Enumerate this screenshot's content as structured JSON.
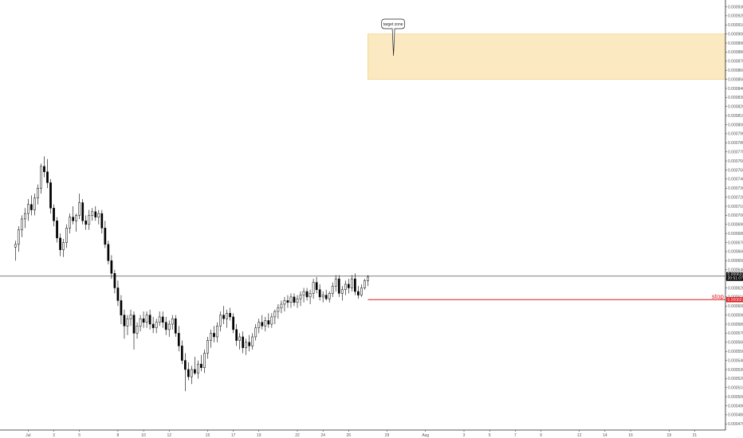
{
  "chart_data": {
    "type": "candlestick",
    "title": "",
    "xlabel": "",
    "ylabel": "",
    "ylim": [
      0.00047,
      0.00093
    ],
    "y_ticks": [
      "0.000930",
      "0.000920",
      "0.000910",
      "0.000900",
      "0.000890",
      "0.000880",
      "0.000870",
      "0.000860",
      "0.000850",
      "0.000840",
      "0.000830",
      "0.000820",
      "0.000810",
      "0.000800",
      "0.000790",
      "0.000780",
      "0.000770",
      "0.000760",
      "0.000750",
      "0.000740",
      "0.000730",
      "0.000720",
      "0.000710",
      "0.000700",
      "0.000690",
      "0.000680",
      "0.000670",
      "0.000660",
      "0.000650",
      "0.000640",
      "0.000630",
      "0.000620",
      "0.000610",
      "0.000600",
      "0.000590",
      "0.000580",
      "0.000570",
      "0.000560",
      "0.000550",
      "0.000540",
      "0.000530",
      "0.000520",
      "0.000510",
      "0.000500",
      "0.000490",
      "0.000480",
      "0.000470"
    ],
    "x_ticks": [
      "Jul",
      "3",
      "5",
      "8",
      "10",
      "12",
      "15",
      "17",
      "19",
      "22",
      "24",
      "26",
      "29",
      "Aug",
      "3",
      "5",
      "7",
      "9",
      "12",
      "14",
      "16",
      "19",
      "21"
    ],
    "x_tick_days": [
      1,
      3,
      5,
      8,
      10,
      12,
      15,
      17,
      19,
      22,
      24,
      26,
      29,
      32,
      35,
      37,
      39,
      41,
      44,
      46,
      48,
      51,
      53
    ],
    "x_range_days": [
      -1.2,
      55.4
    ],
    "candles": [
      {
        "d": 0.0,
        "o": 0.000665,
        "h": 0.000672,
        "l": 0.00065,
        "c": 0.000668
      },
      {
        "d": 0.25,
        "o": 0.000668,
        "h": 0.000688,
        "l": 0.00066,
        "c": 0.000684
      },
      {
        "d": 0.5,
        "o": 0.000684,
        "h": 0.0007,
        "l": 0.000676,
        "c": 0.000696
      },
      {
        "d": 0.75,
        "o": 0.000696,
        "h": 0.000708,
        "l": 0.000686,
        "c": 0.000702
      },
      {
        "d": 1.0,
        "o": 0.000702,
        "h": 0.000718,
        "l": 0.000694,
        "c": 0.000712
      },
      {
        "d": 1.25,
        "o": 0.000712,
        "h": 0.000722,
        "l": 0.0007,
        "c": 0.000706
      },
      {
        "d": 1.5,
        "o": 0.000706,
        "h": 0.000724,
        "l": 0.0007,
        "c": 0.000719
      },
      {
        "d": 1.75,
        "o": 0.000719,
        "h": 0.000734,
        "l": 0.000712,
        "c": 0.00073
      },
      {
        "d": 2.0,
        "o": 0.00073,
        "h": 0.000757,
        "l": 0.000724,
        "c": 0.000754
      },
      {
        "d": 2.25,
        "o": 0.000754,
        "h": 0.000765,
        "l": 0.000742,
        "c": 0.000748
      },
      {
        "d": 2.5,
        "o": 0.000748,
        "h": 0.000762,
        "l": 0.00073,
        "c": 0.000736
      },
      {
        "d": 2.75,
        "o": 0.000736,
        "h": 0.00074,
        "l": 0.000702,
        "c": 0.000708
      },
      {
        "d": 3.0,
        "o": 0.000708,
        "h": 0.000712,
        "l": 0.000688,
        "c": 0.000694
      },
      {
        "d": 3.25,
        "o": 0.000694,
        "h": 0.000698,
        "l": 0.00067,
        "c": 0.000675
      },
      {
        "d": 3.5,
        "o": 0.000675,
        "h": 0.00068,
        "l": 0.000655,
        "c": 0.000662
      },
      {
        "d": 3.75,
        "o": 0.000662,
        "h": 0.000674,
        "l": 0.000654,
        "c": 0.00067
      },
      {
        "d": 4.0,
        "o": 0.00067,
        "h": 0.00069,
        "l": 0.000664,
        "c": 0.000686
      },
      {
        "d": 4.25,
        "o": 0.000686,
        "h": 0.000702,
        "l": 0.00068,
        "c": 0.000698
      },
      {
        "d": 4.5,
        "o": 0.000698,
        "h": 0.00071,
        "l": 0.00069,
        "c": 0.000694
      },
      {
        "d": 4.75,
        "o": 0.000694,
        "h": 0.000702,
        "l": 0.000682,
        "c": 0.0007
      },
      {
        "d": 5.0,
        "o": 0.0007,
        "h": 0.000724,
        "l": 0.000696,
        "c": 0.000714
      },
      {
        "d": 5.25,
        "o": 0.000714,
        "h": 0.000718,
        "l": 0.00069,
        "c": 0.000694
      },
      {
        "d": 5.5,
        "o": 0.000694,
        "h": 0.0007,
        "l": 0.000684,
        "c": 0.00069
      },
      {
        "d": 5.75,
        "o": 0.00069,
        "h": 0.000706,
        "l": 0.000684,
        "c": 0.0007
      },
      {
        "d": 6.0,
        "o": 0.0007,
        "h": 0.000708,
        "l": 0.000694,
        "c": 0.000704
      },
      {
        "d": 6.25,
        "o": 0.000704,
        "h": 0.00071,
        "l": 0.000694,
        "c": 0.000698
      },
      {
        "d": 6.5,
        "o": 0.000698,
        "h": 0.000706,
        "l": 0.00069,
        "c": 0.000702
      },
      {
        "d": 6.75,
        "o": 0.000702,
        "h": 0.000706,
        "l": 0.00068,
        "c": 0.000686
      },
      {
        "d": 7.0,
        "o": 0.000686,
        "h": 0.000694,
        "l": 0.000664,
        "c": 0.000668
      },
      {
        "d": 7.25,
        "o": 0.000668,
        "h": 0.000672,
        "l": 0.000646,
        "c": 0.00065
      },
      {
        "d": 7.5,
        "o": 0.00065,
        "h": 0.000656,
        "l": 0.00063,
        "c": 0.000636
      },
      {
        "d": 7.75,
        "o": 0.000636,
        "h": 0.00064,
        "l": 0.000614,
        "c": 0.00062
      },
      {
        "d": 8.0,
        "o": 0.00062,
        "h": 0.000628,
        "l": 0.0006,
        "c": 0.000606
      },
      {
        "d": 8.25,
        "o": 0.000606,
        "h": 0.000612,
        "l": 0.00058,
        "c": 0.00059
      },
      {
        "d": 8.5,
        "o": 0.00059,
        "h": 0.000596,
        "l": 0.000564,
        "c": 0.000578
      },
      {
        "d": 8.75,
        "o": 0.000578,
        "h": 0.00059,
        "l": 0.000568,
        "c": 0.000586
      },
      {
        "d": 9.0,
        "o": 0.000586,
        "h": 0.000596,
        "l": 0.000578,
        "c": 0.00059
      },
      {
        "d": 9.25,
        "o": 0.00059,
        "h": 0.000594,
        "l": 0.000552,
        "c": 0.00057
      },
      {
        "d": 9.5,
        "o": 0.00057,
        "h": 0.000582,
        "l": 0.000564,
        "c": 0.000578
      },
      {
        "d": 9.75,
        "o": 0.000578,
        "h": 0.00059,
        "l": 0.000572,
        "c": 0.000586
      },
      {
        "d": 10.0,
        "o": 0.000586,
        "h": 0.000594,
        "l": 0.000576,
        "c": 0.000582
      },
      {
        "d": 10.25,
        "o": 0.000582,
        "h": 0.000594,
        "l": 0.000576,
        "c": 0.00059
      },
      {
        "d": 10.5,
        "o": 0.00059,
        "h": 0.000596,
        "l": 0.000574,
        "c": 0.00058
      },
      {
        "d": 10.75,
        "o": 0.00058,
        "h": 0.000588,
        "l": 0.00057,
        "c": 0.000576
      },
      {
        "d": 11.0,
        "o": 0.000576,
        "h": 0.000586,
        "l": 0.00057,
        "c": 0.000582
      },
      {
        "d": 11.25,
        "o": 0.000582,
        "h": 0.000594,
        "l": 0.000578,
        "c": 0.000588
      },
      {
        "d": 11.5,
        "o": 0.000588,
        "h": 0.000594,
        "l": 0.000576,
        "c": 0.000582
      },
      {
        "d": 11.75,
        "o": 0.000582,
        "h": 0.000588,
        "l": 0.000568,
        "c": 0.000574
      },
      {
        "d": 12.0,
        "o": 0.000574,
        "h": 0.000584,
        "l": 0.000566,
        "c": 0.00058
      },
      {
        "d": 12.25,
        "o": 0.00058,
        "h": 0.00059,
        "l": 0.000574,
        "c": 0.000586
      },
      {
        "d": 12.5,
        "o": 0.000586,
        "h": 0.00059,
        "l": 0.000566,
        "c": 0.00057
      },
      {
        "d": 12.75,
        "o": 0.00057,
        "h": 0.000578,
        "l": 0.00055,
        "c": 0.000556
      },
      {
        "d": 13.0,
        "o": 0.000556,
        "h": 0.000562,
        "l": 0.000536,
        "c": 0.00054
      },
      {
        "d": 13.25,
        "o": 0.00054,
        "h": 0.000548,
        "l": 0.000506,
        "c": 0.00053
      },
      {
        "d": 13.5,
        "o": 0.00053,
        "h": 0.000538,
        "l": 0.000518,
        "c": 0.000522
      },
      {
        "d": 13.75,
        "o": 0.000522,
        "h": 0.000534,
        "l": 0.000514,
        "c": 0.00053
      },
      {
        "d": 14.0,
        "o": 0.00053,
        "h": 0.000544,
        "l": 0.000524,
        "c": 0.000526
      },
      {
        "d": 14.25,
        "o": 0.000526,
        "h": 0.00054,
        "l": 0.00052,
        "c": 0.000536
      },
      {
        "d": 14.5,
        "o": 0.000536,
        "h": 0.000546,
        "l": 0.000528,
        "c": 0.000532
      },
      {
        "d": 14.75,
        "o": 0.000532,
        "h": 0.000552,
        "l": 0.000526,
        "c": 0.000548
      },
      {
        "d": 15.0,
        "o": 0.000548,
        "h": 0.000566,
        "l": 0.000542,
        "c": 0.000562
      },
      {
        "d": 15.25,
        "o": 0.000562,
        "h": 0.000574,
        "l": 0.000554,
        "c": 0.00057
      },
      {
        "d": 15.5,
        "o": 0.00057,
        "h": 0.000578,
        "l": 0.00056,
        "c": 0.000566
      },
      {
        "d": 15.75,
        "o": 0.000566,
        "h": 0.000582,
        "l": 0.00056,
        "c": 0.000578
      },
      {
        "d": 16.0,
        "o": 0.000578,
        "h": 0.000594,
        "l": 0.000572,
        "c": 0.00059
      },
      {
        "d": 16.25,
        "o": 0.00059,
        "h": 0.0006,
        "l": 0.00058,
        "c": 0.000586
      },
      {
        "d": 16.5,
        "o": 0.000586,
        "h": 0.000596,
        "l": 0.000576,
        "c": 0.000592
      },
      {
        "d": 16.75,
        "o": 0.000592,
        "h": 0.000598,
        "l": 0.000584,
        "c": 0.000588
      },
      {
        "d": 17.0,
        "o": 0.000588,
        "h": 0.000592,
        "l": 0.00057,
        "c": 0.000574
      },
      {
        "d": 17.25,
        "o": 0.000574,
        "h": 0.00058,
        "l": 0.000556,
        "c": 0.000562
      },
      {
        "d": 17.5,
        "o": 0.000562,
        "h": 0.00057,
        "l": 0.000552,
        "c": 0.000566
      },
      {
        "d": 17.75,
        "o": 0.000566,
        "h": 0.000572,
        "l": 0.000548,
        "c": 0.000554
      },
      {
        "d": 18.0,
        "o": 0.000554,
        "h": 0.000564,
        "l": 0.000546,
        "c": 0.00056
      },
      {
        "d": 18.25,
        "o": 0.00056,
        "h": 0.000568,
        "l": 0.00055,
        "c": 0.000556
      },
      {
        "d": 18.5,
        "o": 0.000556,
        "h": 0.00057,
        "l": 0.000552,
        "c": 0.000566
      },
      {
        "d": 18.75,
        "o": 0.000566,
        "h": 0.00058,
        "l": 0.000562,
        "c": 0.000576
      },
      {
        "d": 19.0,
        "o": 0.000576,
        "h": 0.000586,
        "l": 0.00057,
        "c": 0.000582
      },
      {
        "d": 19.25,
        "o": 0.000582,
        "h": 0.00059,
        "l": 0.000574,
        "c": 0.000578
      },
      {
        "d": 19.5,
        "o": 0.000578,
        "h": 0.000588,
        "l": 0.000572,
        "c": 0.000584
      },
      {
        "d": 19.75,
        "o": 0.000584,
        "h": 0.000592,
        "l": 0.000576,
        "c": 0.00058
      },
      {
        "d": 20.0,
        "o": 0.00058,
        "h": 0.000592,
        "l": 0.000576,
        "c": 0.000588
      },
      {
        "d": 20.25,
        "o": 0.000588,
        "h": 0.000596,
        "l": 0.00058,
        "c": 0.000594
      },
      {
        "d": 20.5,
        "o": 0.000594,
        "h": 0.000602,
        "l": 0.000586,
        "c": 0.000598
      },
      {
        "d": 20.75,
        "o": 0.000598,
        "h": 0.000606,
        "l": 0.000592,
        "c": 0.000602
      },
      {
        "d": 21.0,
        "o": 0.000602,
        "h": 0.00061,
        "l": 0.000594,
        "c": 0.000606
      },
      {
        "d": 21.25,
        "o": 0.000606,
        "h": 0.000612,
        "l": 0.000598,
        "c": 0.000604
      },
      {
        "d": 21.5,
        "o": 0.000604,
        "h": 0.000614,
        "l": 0.000598,
        "c": 0.00061
      },
      {
        "d": 21.75,
        "o": 0.00061,
        "h": 0.000614,
        "l": 0.0006,
        "c": 0.000604
      },
      {
        "d": 22.0,
        "o": 0.000604,
        "h": 0.000612,
        "l": 0.000598,
        "c": 0.000608
      },
      {
        "d": 22.25,
        "o": 0.000608,
        "h": 0.000616,
        "l": 0.0006,
        "c": 0.000612
      },
      {
        "d": 22.5,
        "o": 0.000612,
        "h": 0.00062,
        "l": 0.000604,
        "c": 0.000616
      },
      {
        "d": 22.75,
        "o": 0.000616,
        "h": 0.00062,
        "l": 0.000606,
        "c": 0.00061
      },
      {
        "d": 23.0,
        "o": 0.00061,
        "h": 0.000618,
        "l": 0.000602,
        "c": 0.000614
      },
      {
        "d": 23.25,
        "o": 0.000614,
        "h": 0.00063,
        "l": 0.000608,
        "c": 0.000626
      },
      {
        "d": 23.5,
        "o": 0.000626,
        "h": 0.000632,
        "l": 0.000614,
        "c": 0.000618
      },
      {
        "d": 23.75,
        "o": 0.000618,
        "h": 0.000624,
        "l": 0.000606,
        "c": 0.00061
      },
      {
        "d": 24.0,
        "o": 0.00061,
        "h": 0.000616,
        "l": 0.000604,
        "c": 0.000612
      },
      {
        "d": 24.25,
        "o": 0.000612,
        "h": 0.000618,
        "l": 0.000606,
        "c": 0.000608
      },
      {
        "d": 24.5,
        "o": 0.000608,
        "h": 0.000616,
        "l": 0.000604,
        "c": 0.000614
      },
      {
        "d": 24.75,
        "o": 0.000614,
        "h": 0.000626,
        "l": 0.00061,
        "c": 0.000622
      },
      {
        "d": 25.0,
        "o": 0.000622,
        "h": 0.000634,
        "l": 0.000616,
        "c": 0.00063
      },
      {
        "d": 25.25,
        "o": 0.00063,
        "h": 0.000634,
        "l": 0.00061,
        "c": 0.000614
      },
      {
        "d": 25.5,
        "o": 0.000614,
        "h": 0.000622,
        "l": 0.000606,
        "c": 0.000618
      },
      {
        "d": 25.75,
        "o": 0.000618,
        "h": 0.000628,
        "l": 0.000612,
        "c": 0.000624
      },
      {
        "d": 26.0,
        "o": 0.000624,
        "h": 0.00063,
        "l": 0.000614,
        "c": 0.00062
      },
      {
        "d": 26.25,
        "o": 0.00062,
        "h": 0.000634,
        "l": 0.000616,
        "c": 0.00063
      },
      {
        "d": 26.5,
        "o": 0.00063,
        "h": 0.000636,
        "l": 0.000612,
        "c": 0.000616
      },
      {
        "d": 26.75,
        "o": 0.000616,
        "h": 0.000622,
        "l": 0.000608,
        "c": 0.000612
      },
      {
        "d": 27.0,
        "o": 0.000612,
        "h": 0.000624,
        "l": 0.00061,
        "c": 0.00062
      },
      {
        "d": 27.25,
        "o": 0.00062,
        "h": 0.00063,
        "l": 0.000618,
        "c": 0.000628
      },
      {
        "d": 27.5,
        "o": 0.000628,
        "h": 0.000634,
        "l": 0.000622,
        "c": 0.000632
      }
    ],
    "current_price": 0.000633,
    "price_tag": [
      "0.000633",
      "20:51:07"
    ],
    "price_line_start_day": -1.2,
    "stop_level": 0.000607,
    "stop_line_start_day": 27.5,
    "stop_label": "stop",
    "stop_tag": "0.000607",
    "target_zone": {
      "low": 0.00085,
      "high": 0.0009,
      "start_day": 27.5
    },
    "target_label": "target zone",
    "target_pointer": {
      "day": 29.5,
      "price": 0.000876
    },
    "grid": false,
    "colors": {
      "candle_up": "#ffffff",
      "candle_down": "#000000",
      "wick": "#000000",
      "price_line": "#6f6f6f",
      "price_tag_bg": "#000000",
      "stop": "#e0191d",
      "zone_fill": "#fbe9c1",
      "zone_border": "#f4d38a",
      "axis": "#222222"
    }
  }
}
